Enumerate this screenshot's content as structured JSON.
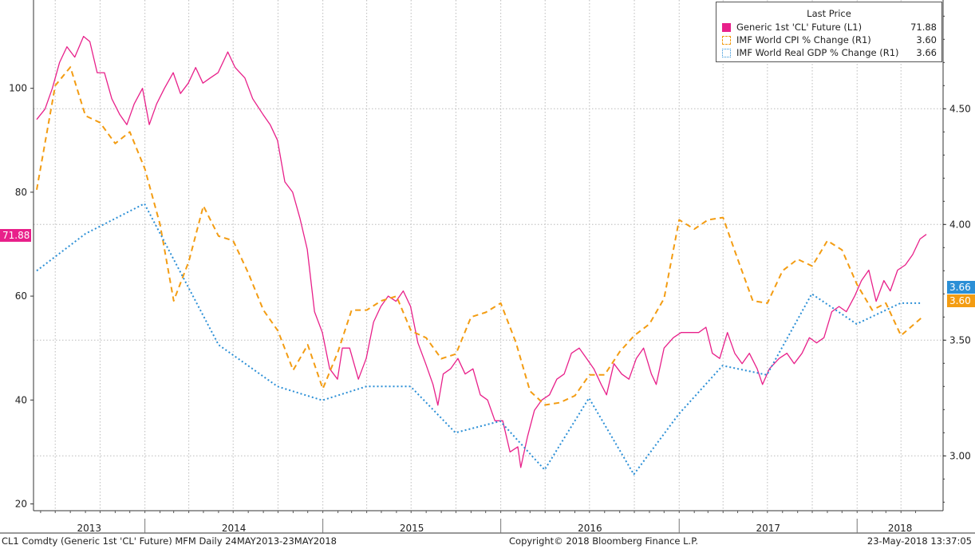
{
  "chart_data": {
    "type": "line",
    "x_range": [
      "2013-05-24",
      "2018-05-23"
    ],
    "x_tick_labels": [
      "2013",
      "2014",
      "2015",
      "2016",
      "2017",
      "2018"
    ],
    "y_left": {
      "ticks": [
        20,
        40,
        60,
        80,
        100
      ],
      "range": [
        19,
        117
      ]
    },
    "y_right": {
      "ticks": [
        "3.00",
        "3.50",
        "4.00",
        "4.50"
      ],
      "range": [
        2.77,
        4.97
      ]
    },
    "legend": {
      "title": "Last Price",
      "placement": "top-right",
      "items": [
        {
          "name": "Generic 1st 'CL' Future  (L1)",
          "value": "71.88",
          "color": "#e8208a",
          "swatch": "solid"
        },
        {
          "name": "IMF World CPI % Change  (R1)",
          "value": "3.60",
          "color": "#f39c12",
          "swatch": "dashed"
        },
        {
          "name": "IMF World Real GDP % Change  (R1)",
          "value": "3.66",
          "color": "#2b8fd6",
          "swatch": "dotted"
        }
      ]
    },
    "last_tags": {
      "left": "71.88",
      "right_gdp": "3.66",
      "right_cpi": "3.60"
    },
    "series": [
      {
        "name": "Generic 1st 'CL' Future  (L1)",
        "axis": "left",
        "color": "#e8208a",
        "style": "solid",
        "points": [
          [
            "2013-05-24",
            94
          ],
          [
            "2013-06-10",
            96
          ],
          [
            "2013-06-25",
            100
          ],
          [
            "2013-07-10",
            105
          ],
          [
            "2013-07-25",
            108
          ],
          [
            "2013-08-10",
            106
          ],
          [
            "2013-08-28",
            110
          ],
          [
            "2013-09-10",
            109
          ],
          [
            "2013-09-25",
            103
          ],
          [
            "2013-10-10",
            103
          ],
          [
            "2013-10-25",
            98
          ],
          [
            "2013-11-10",
            95
          ],
          [
            "2013-11-25",
            93
          ],
          [
            "2013-12-10",
            97
          ],
          [
            "2013-12-27",
            100
          ],
          [
            "2014-01-10",
            93
          ],
          [
            "2014-01-25",
            97
          ],
          [
            "2014-02-10",
            100
          ],
          [
            "2014-02-28",
            103
          ],
          [
            "2014-03-15",
            99
          ],
          [
            "2014-03-31",
            101
          ],
          [
            "2014-04-15",
            104
          ],
          [
            "2014-04-30",
            101
          ],
          [
            "2014-05-15",
            102
          ],
          [
            "2014-05-31",
            103
          ],
          [
            "2014-06-20",
            107
          ],
          [
            "2014-07-05",
            104
          ],
          [
            "2014-07-25",
            102
          ],
          [
            "2014-08-10",
            98
          ],
          [
            "2014-08-31",
            95
          ],
          [
            "2014-09-15",
            93
          ],
          [
            "2014-09-30",
            90
          ],
          [
            "2014-10-15",
            82
          ],
          [
            "2014-10-31",
            80
          ],
          [
            "2014-11-15",
            75
          ],
          [
            "2014-11-30",
            69
          ],
          [
            "2014-12-15",
            57
          ],
          [
            "2014-12-31",
            53
          ],
          [
            "2015-01-15",
            46
          ],
          [
            "2015-01-31",
            44
          ],
          [
            "2015-02-10",
            50
          ],
          [
            "2015-02-25",
            50
          ],
          [
            "2015-03-15",
            44
          ],
          [
            "2015-03-31",
            48
          ],
          [
            "2015-04-15",
            55
          ],
          [
            "2015-04-30",
            58
          ],
          [
            "2015-05-15",
            60
          ],
          [
            "2015-05-31",
            59
          ],
          [
            "2015-06-15",
            61
          ],
          [
            "2015-06-30",
            58
          ],
          [
            "2015-07-15",
            51
          ],
          [
            "2015-07-31",
            47
          ],
          [
            "2015-08-15",
            43
          ],
          [
            "2015-08-25",
            39
          ],
          [
            "2015-09-05",
            45
          ],
          [
            "2015-09-20",
            46
          ],
          [
            "2015-10-05",
            48
          ],
          [
            "2015-10-20",
            45
          ],
          [
            "2015-11-05",
            46
          ],
          [
            "2015-11-20",
            41
          ],
          [
            "2015-12-05",
            40
          ],
          [
            "2015-12-20",
            36
          ],
          [
            "2016-01-05",
            36
          ],
          [
            "2016-01-20",
            30
          ],
          [
            "2016-02-05",
            31
          ],
          [
            "2016-02-11",
            27
          ],
          [
            "2016-02-25",
            33
          ],
          [
            "2016-03-10",
            38
          ],
          [
            "2016-03-25",
            40
          ],
          [
            "2016-04-10",
            41
          ],
          [
            "2016-04-25",
            44
          ],
          [
            "2016-05-10",
            45
          ],
          [
            "2016-05-25",
            49
          ],
          [
            "2016-06-10",
            50
          ],
          [
            "2016-06-25",
            48
          ],
          [
            "2016-07-10",
            46
          ],
          [
            "2016-07-25",
            43
          ],
          [
            "2016-08-05",
            41
          ],
          [
            "2016-08-20",
            47
          ],
          [
            "2016-09-05",
            45
          ],
          [
            "2016-09-20",
            44
          ],
          [
            "2016-10-05",
            48
          ],
          [
            "2016-10-20",
            50
          ],
          [
            "2016-11-05",
            45
          ],
          [
            "2016-11-15",
            43
          ],
          [
            "2016-12-01",
            50
          ],
          [
            "2016-12-20",
            52
          ],
          [
            "2017-01-05",
            53
          ],
          [
            "2017-01-25",
            53
          ],
          [
            "2017-02-10",
            53
          ],
          [
            "2017-02-25",
            54
          ],
          [
            "2017-03-10",
            49
          ],
          [
            "2017-03-25",
            48
          ],
          [
            "2017-04-10",
            53
          ],
          [
            "2017-04-25",
            49
          ],
          [
            "2017-05-10",
            47
          ],
          [
            "2017-05-25",
            49
          ],
          [
            "2017-06-10",
            46
          ],
          [
            "2017-06-21",
            43
          ],
          [
            "2017-07-05",
            46
          ],
          [
            "2017-07-25",
            48
          ],
          [
            "2017-08-10",
            49
          ],
          [
            "2017-08-25",
            47
          ],
          [
            "2017-09-10",
            49
          ],
          [
            "2017-09-25",
            52
          ],
          [
            "2017-10-10",
            51
          ],
          [
            "2017-10-25",
            52
          ],
          [
            "2017-11-10",
            57
          ],
          [
            "2017-11-25",
            58
          ],
          [
            "2017-12-10",
            57
          ],
          [
            "2017-12-27",
            60
          ],
          [
            "2018-01-10",
            63
          ],
          [
            "2018-01-25",
            65
          ],
          [
            "2018-02-09",
            59
          ],
          [
            "2018-02-25",
            63
          ],
          [
            "2018-03-10",
            61
          ],
          [
            "2018-03-25",
            65
          ],
          [
            "2018-04-10",
            66
          ],
          [
            "2018-04-25",
            68
          ],
          [
            "2018-05-10",
            71
          ],
          [
            "2018-05-23",
            71.88
          ]
        ]
      },
      {
        "name": "IMF World CPI % Change  (R1)",
        "axis": "right",
        "color": "#f39c12",
        "style": "dashed",
        "points": [
          [
            "2013-05-24",
            4.15
          ],
          [
            "2013-07-01",
            4.6
          ],
          [
            "2013-08-01",
            4.68
          ],
          [
            "2013-09-01",
            4.47
          ],
          [
            "2013-10-01",
            4.44
          ],
          [
            "2013-11-01",
            4.35
          ],
          [
            "2013-12-01",
            4.4
          ],
          [
            "2014-01-01",
            4.24
          ],
          [
            "2014-02-01",
            4.0
          ],
          [
            "2014-03-01",
            3.67
          ],
          [
            "2014-04-01",
            3.84
          ],
          [
            "2014-05-01",
            4.08
          ],
          [
            "2014-06-01",
            3.95
          ],
          [
            "2014-07-01",
            3.93
          ],
          [
            "2014-08-01",
            3.79
          ],
          [
            "2014-09-01",
            3.63
          ],
          [
            "2014-10-01",
            3.54
          ],
          [
            "2014-11-01",
            3.37
          ],
          [
            "2014-12-01",
            3.48
          ],
          [
            "2015-01-01",
            3.29
          ],
          [
            "2015-02-01",
            3.45
          ],
          [
            "2015-03-01",
            3.63
          ],
          [
            "2015-04-01",
            3.63
          ],
          [
            "2015-05-01",
            3.67
          ],
          [
            "2015-06-01",
            3.69
          ],
          [
            "2015-07-01",
            3.54
          ],
          [
            "2015-08-01",
            3.51
          ],
          [
            "2015-09-01",
            3.42
          ],
          [
            "2015-10-01",
            3.44
          ],
          [
            "2015-11-01",
            3.6
          ],
          [
            "2015-12-01",
            3.62
          ],
          [
            "2016-01-01",
            3.66
          ],
          [
            "2016-02-01",
            3.49
          ],
          [
            "2016-03-01",
            3.28
          ],
          [
            "2016-04-01",
            3.22
          ],
          [
            "2016-05-01",
            3.23
          ],
          [
            "2016-06-01",
            3.26
          ],
          [
            "2016-07-01",
            3.35
          ],
          [
            "2016-08-01",
            3.35
          ],
          [
            "2016-09-01",
            3.45
          ],
          [
            "2016-10-01",
            3.52
          ],
          [
            "2016-11-01",
            3.57
          ],
          [
            "2016-12-01",
            3.68
          ],
          [
            "2017-01-01",
            4.02
          ],
          [
            "2017-02-01",
            3.98
          ],
          [
            "2017-03-01",
            4.02
          ],
          [
            "2017-04-01",
            4.03
          ],
          [
            "2017-05-01",
            3.85
          ],
          [
            "2017-06-01",
            3.67
          ],
          [
            "2017-07-01",
            3.66
          ],
          [
            "2017-08-01",
            3.8
          ],
          [
            "2017-09-01",
            3.85
          ],
          [
            "2017-10-01",
            3.82
          ],
          [
            "2017-11-01",
            3.93
          ],
          [
            "2017-12-01",
            3.89
          ],
          [
            "2018-01-01",
            3.74
          ],
          [
            "2018-02-01",
            3.63
          ],
          [
            "2018-03-01",
            3.66
          ],
          [
            "2018-04-01",
            3.52
          ],
          [
            "2018-05-15",
            3.6
          ]
        ]
      },
      {
        "name": "IMF World Real GDP % Change  (R1)",
        "axis": "right",
        "color": "#2b8fd6",
        "style": "dotted",
        "points": [
          [
            "2013-05-24",
            3.8
          ],
          [
            "2013-09-01",
            3.96
          ],
          [
            "2013-12-31",
            4.09
          ],
          [
            "2014-06-01",
            3.48
          ],
          [
            "2014-09-30",
            3.3
          ],
          [
            "2014-12-31",
            3.24
          ],
          [
            "2015-03-31",
            3.3
          ],
          [
            "2015-06-30",
            3.3
          ],
          [
            "2015-09-30",
            3.1
          ],
          [
            "2015-12-31",
            3.15
          ],
          [
            "2016-03-31",
            2.94
          ],
          [
            "2016-06-30",
            3.25
          ],
          [
            "2016-09-30",
            2.92
          ],
          [
            "2016-12-31",
            3.18
          ],
          [
            "2017-03-31",
            3.39
          ],
          [
            "2017-06-30",
            3.35
          ],
          [
            "2017-09-30",
            3.7
          ],
          [
            "2017-12-31",
            3.57
          ],
          [
            "2018-03-31",
            3.66
          ],
          [
            "2018-05-15",
            3.66
          ]
        ]
      }
    ]
  },
  "footer": {
    "left": "CL1 Comdty (Generic 1st 'CL' Future) MFM  Daily 24MAY2013-23MAY2018",
    "center": "Copyright© 2018 Bloomberg Finance L.P.",
    "right": "23-May-2018 13:37:05"
  }
}
